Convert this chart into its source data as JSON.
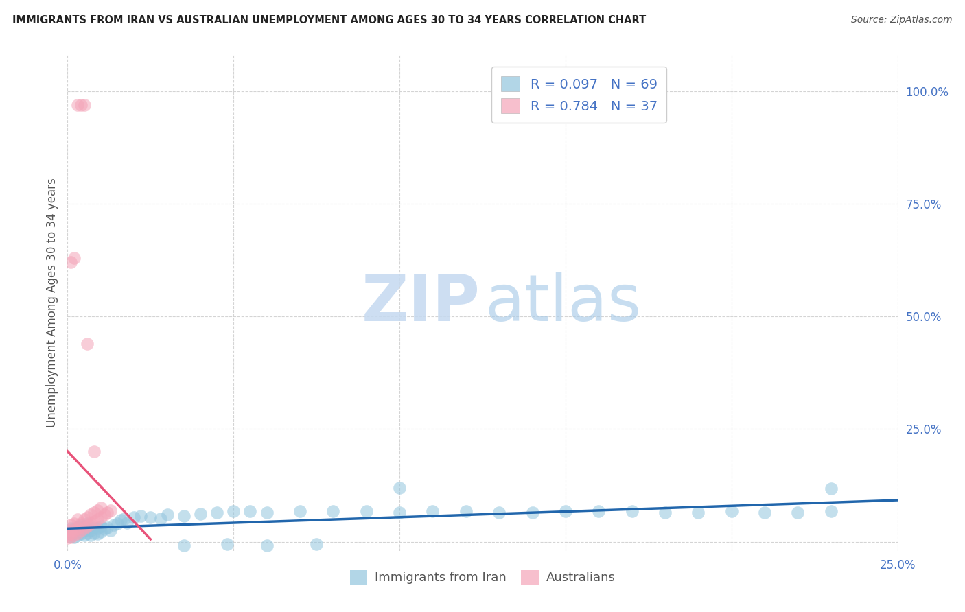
{
  "title": "IMMIGRANTS FROM IRAN VS AUSTRALIAN UNEMPLOYMENT AMONG AGES 30 TO 34 YEARS CORRELATION CHART",
  "source": "Source: ZipAtlas.com",
  "ylabel": "Unemployment Among Ages 30 to 34 years",
  "xlim": [
    0.0,
    0.25
  ],
  "ylim": [
    -0.02,
    1.08
  ],
  "blue_color": "#92c5de",
  "pink_color": "#f4a4b8",
  "blue_line_color": "#2166ac",
  "pink_line_color": "#e8537a",
  "axis_label_color": "#4472c4",
  "title_color": "#222222",
  "source_color": "#555555",
  "background_color": "#ffffff",
  "grid_color": "#d0d0d0",
  "blue_scatter_x": [
    0.0,
    0.001,
    0.001,
    0.001,
    0.002,
    0.002,
    0.002,
    0.003,
    0.003,
    0.003,
    0.004,
    0.004,
    0.004,
    0.005,
    0.005,
    0.005,
    0.006,
    0.006,
    0.006,
    0.007,
    0.007,
    0.008,
    0.008,
    0.009,
    0.009,
    0.01,
    0.01,
    0.011,
    0.012,
    0.013,
    0.014,
    0.015,
    0.016,
    0.017,
    0.018,
    0.02,
    0.022,
    0.025,
    0.028,
    0.03,
    0.035,
    0.04,
    0.045,
    0.05,
    0.055,
    0.06,
    0.07,
    0.08,
    0.09,
    0.1,
    0.11,
    0.12,
    0.13,
    0.14,
    0.15,
    0.16,
    0.17,
    0.18,
    0.19,
    0.2,
    0.21,
    0.22,
    0.23,
    0.035,
    0.048,
    0.06,
    0.075,
    0.1,
    0.23
  ],
  "blue_scatter_y": [
    0.018,
    0.012,
    0.022,
    0.03,
    0.01,
    0.02,
    0.028,
    0.015,
    0.025,
    0.033,
    0.018,
    0.028,
    0.038,
    0.015,
    0.025,
    0.035,
    0.02,
    0.03,
    0.04,
    0.015,
    0.025,
    0.02,
    0.032,
    0.018,
    0.03,
    0.022,
    0.035,
    0.028,
    0.032,
    0.025,
    0.038,
    0.04,
    0.048,
    0.052,
    0.042,
    0.055,
    0.058,
    0.055,
    0.052,
    0.06,
    0.058,
    0.062,
    0.065,
    0.068,
    0.068,
    0.065,
    0.068,
    0.068,
    0.068,
    0.065,
    0.068,
    0.068,
    0.065,
    0.065,
    0.068,
    0.068,
    0.068,
    0.065,
    0.065,
    0.068,
    0.065,
    0.065,
    0.068,
    -0.008,
    -0.005,
    -0.008,
    -0.005,
    0.12,
    0.118
  ],
  "pink_scatter_x": [
    0.0,
    0.0,
    0.0,
    0.001,
    0.001,
    0.001,
    0.001,
    0.002,
    0.002,
    0.002,
    0.003,
    0.003,
    0.003,
    0.004,
    0.004,
    0.005,
    0.005,
    0.006,
    0.006,
    0.007,
    0.007,
    0.008,
    0.008,
    0.009,
    0.009,
    0.01,
    0.01,
    0.011,
    0.012,
    0.013,
    0.001,
    0.002,
    0.003,
    0.004,
    0.005,
    0.006,
    0.008
  ],
  "pink_scatter_y": [
    0.008,
    0.015,
    0.025,
    0.01,
    0.018,
    0.025,
    0.038,
    0.015,
    0.025,
    0.04,
    0.02,
    0.03,
    0.05,
    0.025,
    0.04,
    0.03,
    0.05,
    0.035,
    0.055,
    0.04,
    0.06,
    0.045,
    0.065,
    0.05,
    0.07,
    0.055,
    0.075,
    0.06,
    0.065,
    0.07,
    0.62,
    0.63,
    0.97,
    0.97,
    0.97,
    0.44,
    0.2
  ],
  "pink_line_x_start": 0.0,
  "pink_line_x_end": 0.025,
  "blue_line_x_start": 0.0,
  "blue_line_x_end": 0.25,
  "yticks": [
    0.0,
    0.25,
    0.5,
    0.75,
    1.0
  ],
  "xticks": [
    0.0,
    0.05,
    0.1,
    0.15,
    0.2,
    0.25
  ]
}
